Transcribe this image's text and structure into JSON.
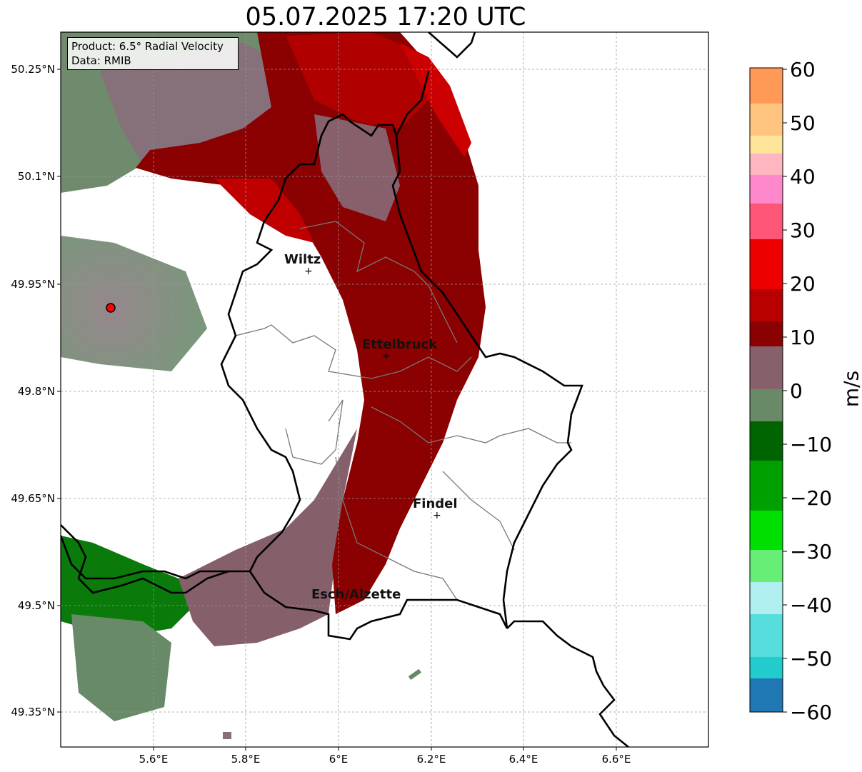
{
  "title": "05.07.2025 17:20 UTC",
  "info": {
    "product": "Product: 6.5° Radial Velocity",
    "source": "Data: RMIB"
  },
  "axes": {
    "lat_ticks": [
      "50.25°N",
      "50.1°N",
      "49.95°N",
      "49.8°N",
      "49.65°N",
      "49.5°N",
      "49.35°N"
    ],
    "lon_ticks": [
      "5.6°E",
      "5.8°E",
      "6°E",
      "6.2°E",
      "6.4°E",
      "6.6°E"
    ]
  },
  "cities": [
    {
      "name": "Wiltz"
    },
    {
      "name": "Ettelbruck"
    },
    {
      "name": "Findel"
    },
    {
      "name": "Esch/Alzette"
    }
  ],
  "colorbar": {
    "unit": "m/s",
    "ticks": [
      "60",
      "50",
      "40",
      "30",
      "20",
      "10",
      "0",
      "−10",
      "−20",
      "−30",
      "−40",
      "−50",
      "−60"
    ]
  },
  "colors": {
    "inbound_strong": "#1f77b4",
    "inbound": "#00aa00",
    "near_zero": "#806070",
    "outbound": "#8b0000",
    "outbound_strong": "#ff9955"
  }
}
